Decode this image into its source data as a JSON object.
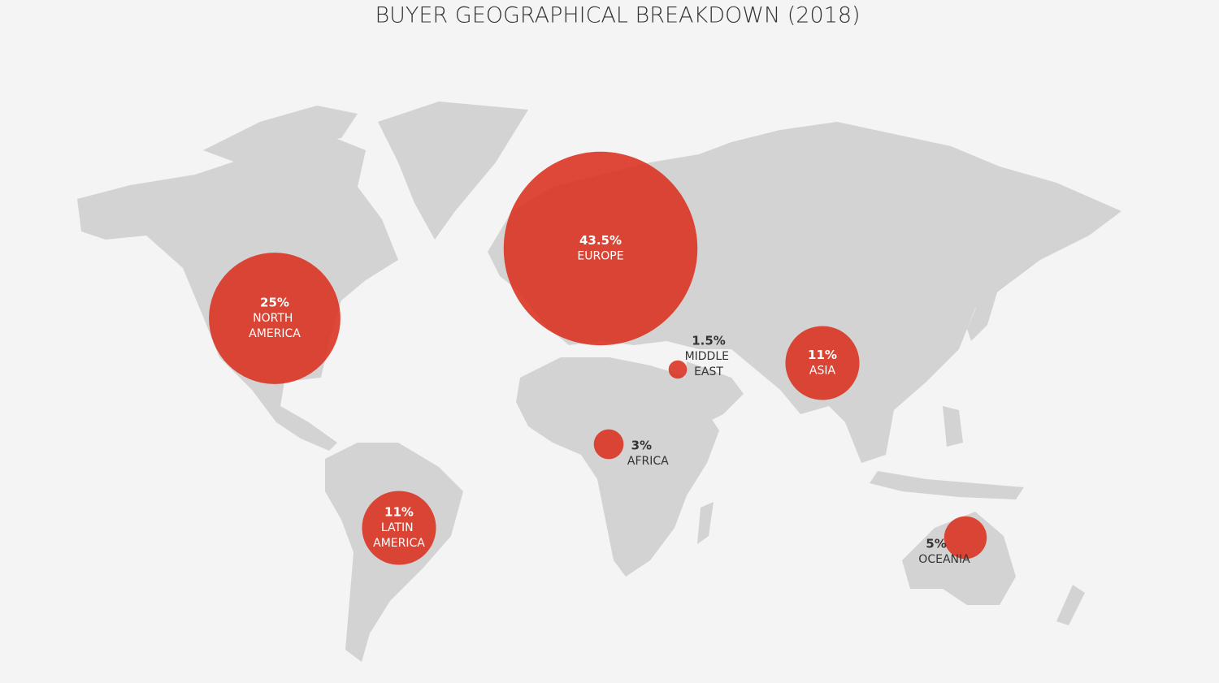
{
  "chart_data": {
    "type": "bubble_map",
    "title": "BUYER GEOGRAPHICAL BREAKDOWN (2018)",
    "categories": [
      "NORTH AMERICA",
      "EUROPE",
      "MIDDLE EAST",
      "ASIA",
      "LATIN AMERICA",
      "AFRICA",
      "OCEANIA"
    ],
    "values": [
      25,
      43.5,
      1.5,
      11,
      11,
      3,
      5
    ],
    "value_labels": [
      "25%",
      "43.5%",
      "1.5%",
      "11%",
      "11%",
      "3%",
      "5%"
    ],
    "color": "#d9301f"
  }
}
